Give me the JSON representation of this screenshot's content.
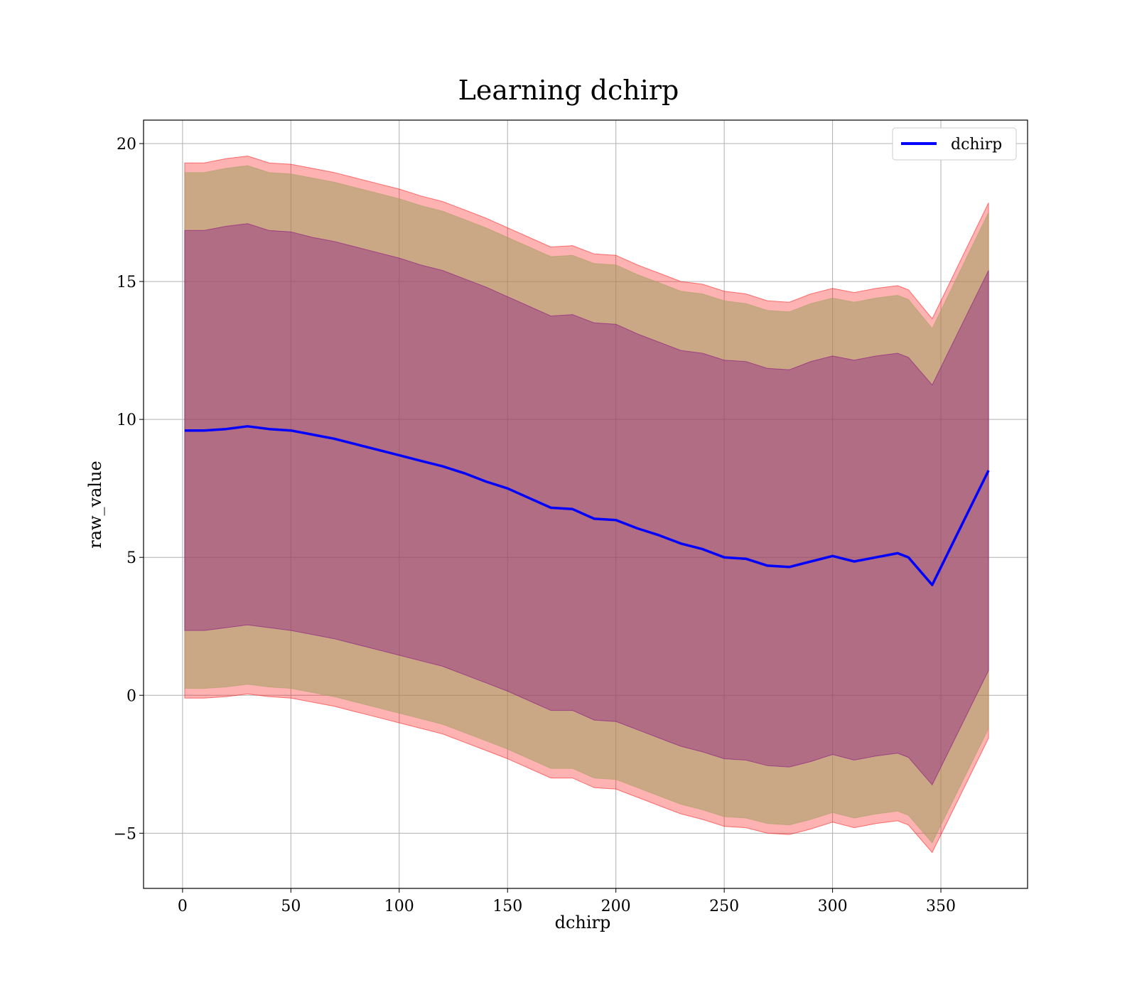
{
  "chart_data": {
    "type": "area",
    "title": "Learning dchirp",
    "xlabel": "dchirp",
    "ylabel": "raw_value",
    "xlim": [
      -18,
      390
    ],
    "ylim": [
      -7,
      20.85
    ],
    "xticks": [
      0,
      50,
      100,
      150,
      200,
      250,
      300,
      350
    ],
    "yticks": [
      -5,
      0,
      5,
      10,
      15,
      20
    ],
    "ytick_labels": [
      "−5",
      "0",
      "5",
      "10",
      "15",
      "20"
    ],
    "grid": true,
    "legend_position": "top-right",
    "legend": [
      "dchirp"
    ],
    "colors": {
      "line": "#0000ff",
      "band_outer": "#ff0000",
      "band_mid": "#a0a060",
      "band_inner": "#800080",
      "grid": "#b0b0b0"
    },
    "x": [
      1,
      10,
      20,
      30,
      40,
      50,
      60,
      70,
      80,
      90,
      100,
      110,
      120,
      130,
      140,
      150,
      160,
      170,
      180,
      190,
      200,
      210,
      220,
      230,
      240,
      250,
      260,
      270,
      280,
      290,
      300,
      310,
      320,
      330,
      335,
      346,
      372
    ],
    "series": [
      {
        "name": "dchirp",
        "values": [
          9.6,
          9.6,
          9.65,
          9.75,
          9.65,
          9.6,
          9.45,
          9.3,
          9.1,
          8.9,
          8.7,
          8.5,
          8.3,
          8.05,
          7.75,
          7.5,
          7.15,
          6.8,
          6.75,
          6.4,
          6.35,
          6.05,
          5.8,
          5.5,
          5.3,
          5.0,
          4.95,
          4.7,
          4.65,
          4.85,
          5.05,
          4.85,
          5.0,
          5.15,
          5.0,
          4.0,
          8.15
        ]
      }
    ],
    "bands": [
      {
        "role": "outer",
        "upper": [
          19.3,
          19.3,
          19.45,
          19.55,
          19.3,
          19.25,
          19.1,
          18.95,
          18.75,
          18.55,
          18.35,
          18.1,
          17.9,
          17.6,
          17.3,
          16.95,
          16.6,
          16.25,
          16.3,
          16.0,
          15.95,
          15.6,
          15.3,
          15.0,
          14.9,
          14.65,
          14.55,
          14.3,
          14.25,
          14.55,
          14.75,
          14.6,
          14.75,
          14.85,
          14.7,
          13.65,
          17.85
        ],
        "lower": [
          -0.1,
          -0.1,
          -0.05,
          0.05,
          -0.05,
          -0.1,
          -0.25,
          -0.4,
          -0.6,
          -0.8,
          -1.0,
          -1.2,
          -1.4,
          -1.7,
          -2.0,
          -2.3,
          -2.65,
          -3.0,
          -3.0,
          -3.35,
          -3.4,
          -3.7,
          -4.0,
          -4.3,
          -4.5,
          -4.75,
          -4.8,
          -5.0,
          -5.05,
          -4.85,
          -4.6,
          -4.8,
          -4.65,
          -4.55,
          -4.7,
          -5.7,
          -1.55
        ]
      },
      {
        "role": "mid",
        "upper": [
          18.95,
          18.95,
          19.1,
          19.2,
          18.95,
          18.9,
          18.75,
          18.6,
          18.4,
          18.2,
          18.0,
          17.75,
          17.55,
          17.25,
          16.95,
          16.6,
          16.25,
          15.9,
          15.95,
          15.65,
          15.6,
          15.25,
          14.95,
          14.65,
          14.55,
          14.3,
          14.2,
          13.95,
          13.9,
          14.2,
          14.4,
          14.25,
          14.4,
          14.5,
          14.35,
          13.3,
          17.5
        ],
        "lower": [
          0.25,
          0.25,
          0.3,
          0.4,
          0.3,
          0.25,
          0.1,
          -0.05,
          -0.25,
          -0.45,
          -0.65,
          -0.85,
          -1.05,
          -1.35,
          -1.65,
          -1.95,
          -2.3,
          -2.65,
          -2.65,
          -3.0,
          -3.05,
          -3.35,
          -3.65,
          -3.95,
          -4.15,
          -4.4,
          -4.45,
          -4.65,
          -4.7,
          -4.5,
          -4.25,
          -4.45,
          -4.3,
          -4.2,
          -4.35,
          -5.35,
          -1.2
        ]
      },
      {
        "role": "inner",
        "upper": [
          16.85,
          16.85,
          17.0,
          17.1,
          16.85,
          16.8,
          16.6,
          16.45,
          16.25,
          16.05,
          15.85,
          15.6,
          15.4,
          15.1,
          14.8,
          14.45,
          14.1,
          13.75,
          13.8,
          13.5,
          13.45,
          13.1,
          12.8,
          12.5,
          12.4,
          12.15,
          12.1,
          11.85,
          11.8,
          12.1,
          12.3,
          12.15,
          12.3,
          12.4,
          12.25,
          11.25,
          15.4
        ],
        "lower": [
          2.35,
          2.35,
          2.45,
          2.55,
          2.45,
          2.35,
          2.2,
          2.05,
          1.85,
          1.65,
          1.45,
          1.25,
          1.05,
          0.75,
          0.45,
          0.15,
          -0.2,
          -0.55,
          -0.55,
          -0.9,
          -0.95,
          -1.25,
          -1.55,
          -1.85,
          -2.05,
          -2.3,
          -2.35,
          -2.55,
          -2.6,
          -2.4,
          -2.15,
          -2.35,
          -2.2,
          -2.1,
          -2.25,
          -3.25,
          0.9
        ]
      }
    ]
  }
}
